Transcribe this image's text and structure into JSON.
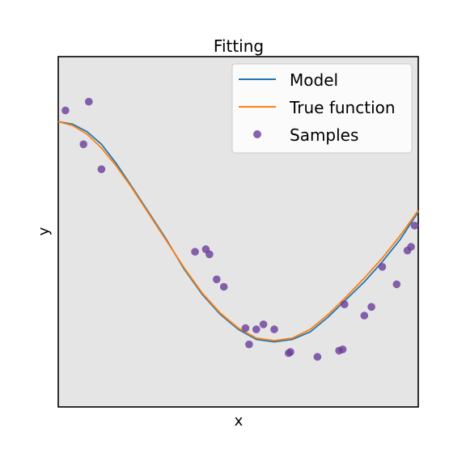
{
  "chart_data": {
    "type": "line",
    "title": "Fitting",
    "xlabel": "x",
    "ylabel": "y",
    "xlim": [
      0,
      1
    ],
    "ylim": [
      -1.6,
      1.2
    ],
    "grid": false,
    "ticks_visible": false,
    "legend_position": "top-right",
    "colors": {
      "plot_bg": "#e5e5e5",
      "model": "#1f77b4",
      "true_function": "#ff7f0e",
      "samples": "#6a3d9a"
    },
    "series": [
      {
        "name": "Model",
        "kind": "line",
        "x": [
          0.0,
          0.04,
          0.08,
          0.12,
          0.16,
          0.2,
          0.25,
          0.3,
          0.35,
          0.4,
          0.45,
          0.5,
          0.55,
          0.6,
          0.65,
          0.7,
          0.75,
          0.8,
          0.85,
          0.9,
          0.95,
          1.0
        ],
        "y": [
          0.68,
          0.66,
          0.6,
          0.5,
          0.35,
          0.18,
          -0.04,
          -0.26,
          -0.5,
          -0.7,
          -0.86,
          -0.98,
          -1.06,
          -1.08,
          -1.06,
          -1.0,
          -0.88,
          -0.74,
          -0.6,
          -0.44,
          -0.26,
          -0.04
        ]
      },
      {
        "name": "True function",
        "kind": "line",
        "x": [
          0.0,
          0.04,
          0.08,
          0.12,
          0.16,
          0.2,
          0.25,
          0.3,
          0.35,
          0.4,
          0.45,
          0.5,
          0.55,
          0.6,
          0.65,
          0.7,
          0.75,
          0.8,
          0.85,
          0.9,
          0.95,
          1.0
        ],
        "y": [
          0.68,
          0.65,
          0.58,
          0.47,
          0.33,
          0.17,
          -0.05,
          -0.27,
          -0.49,
          -0.69,
          -0.85,
          -0.97,
          -1.05,
          -1.07,
          -1.05,
          -0.98,
          -0.86,
          -0.72,
          -0.57,
          -0.41,
          -0.23,
          -0.03
        ]
      },
      {
        "name": "Samples",
        "kind": "scatter",
        "x": [
          0.02,
          0.07,
          0.085,
          0.12,
          0.38,
          0.41,
          0.42,
          0.44,
          0.46,
          0.52,
          0.53,
          0.55,
          0.57,
          0.6,
          0.64,
          0.645,
          0.72,
          0.78,
          0.79,
          0.795,
          0.85,
          0.87,
          0.9,
          0.94,
          0.97,
          0.98,
          0.99
        ],
        "y": [
          0.77,
          0.5,
          0.84,
          0.3,
          -0.36,
          -0.34,
          -0.38,
          -0.58,
          -0.64,
          -0.97,
          -1.1,
          -0.98,
          -0.94,
          -0.98,
          -1.17,
          -1.16,
          -1.2,
          -1.15,
          -1.14,
          -0.78,
          -0.87,
          -0.8,
          -0.48,
          -0.62,
          -0.35,
          -0.32,
          -0.15
        ]
      }
    ]
  }
}
